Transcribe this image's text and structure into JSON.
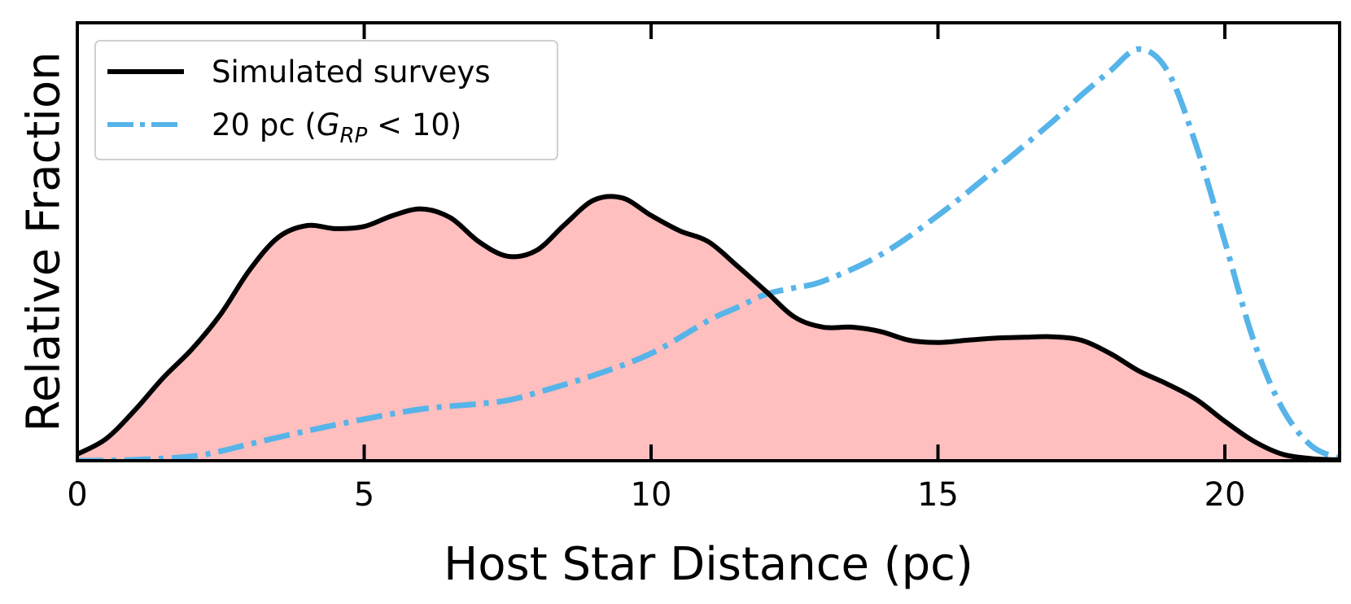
{
  "chart_data": {
    "type": "line",
    "xlabel": "Host Star Distance (pc)",
    "ylabel": "Relative Fraction",
    "xlim": [
      0,
      22
    ],
    "ylim": [
      0,
      1.0
    ],
    "x_ticks": [
      0,
      5,
      10,
      15,
      20
    ],
    "x_tick_labels": [
      "0",
      "5",
      "10",
      "15",
      "20"
    ],
    "y_ticks_shown": false,
    "grid": false,
    "legend_position": "top-left",
    "series": [
      {
        "name": "Simulated surveys",
        "style": "solid",
        "color": "#000000",
        "fill": "#ffbfbf",
        "x": [
          0,
          0.5,
          1,
          1.5,
          2,
          2.5,
          3,
          3.5,
          4,
          4.5,
          5,
          5.5,
          6,
          6.5,
          7,
          7.5,
          8,
          8.5,
          9,
          9.5,
          10,
          10.5,
          11,
          11.5,
          12,
          12.5,
          13,
          13.5,
          14,
          14.5,
          15,
          15.5,
          16,
          16.5,
          17,
          17.5,
          18,
          18.5,
          19,
          19.5,
          20,
          20.5,
          21,
          21.5,
          22
        ],
        "y": [
          0.015,
          0.05,
          0.115,
          0.19,
          0.255,
          0.335,
          0.435,
          0.51,
          0.537,
          0.53,
          0.535,
          0.56,
          0.575,
          0.555,
          0.5,
          0.467,
          0.48,
          0.54,
          0.595,
          0.6,
          0.56,
          0.525,
          0.5,
          0.445,
          0.387,
          0.328,
          0.305,
          0.305,
          0.295,
          0.275,
          0.27,
          0.275,
          0.28,
          0.282,
          0.283,
          0.275,
          0.245,
          0.205,
          0.175,
          0.14,
          0.09,
          0.045,
          0.015,
          0.005,
          0.002
        ]
      },
      {
        "name": "20 pc (G_RP < 10)",
        "style": "dashdot",
        "color": "#56b4e9",
        "x": [
          0,
          1,
          2,
          2.5,
          3,
          4,
          5,
          6,
          7,
          7.5,
          8,
          9,
          10,
          11,
          11.5,
          12,
          12.5,
          13,
          14,
          15,
          16,
          17,
          17.5,
          18,
          18.5,
          19,
          19.5,
          20,
          20.5,
          21,
          21.5,
          22
        ],
        "y": [
          0.0,
          0.002,
          0.01,
          0.022,
          0.038,
          0.068,
          0.095,
          0.118,
          0.13,
          0.138,
          0.155,
          0.195,
          0.245,
          0.32,
          0.35,
          0.38,
          0.395,
          0.41,
          0.47,
          0.56,
          0.665,
          0.775,
          0.835,
          0.89,
          0.94,
          0.89,
          0.72,
          0.5,
          0.275,
          0.12,
          0.035,
          0.005
        ]
      }
    ]
  },
  "legend": {
    "items": [
      {
        "label": "Simulated surveys"
      },
      {
        "label_prefix": "20 pc (",
        "label_var": "G",
        "label_sub": "RP",
        "label_suffix": " < 10)"
      }
    ]
  }
}
